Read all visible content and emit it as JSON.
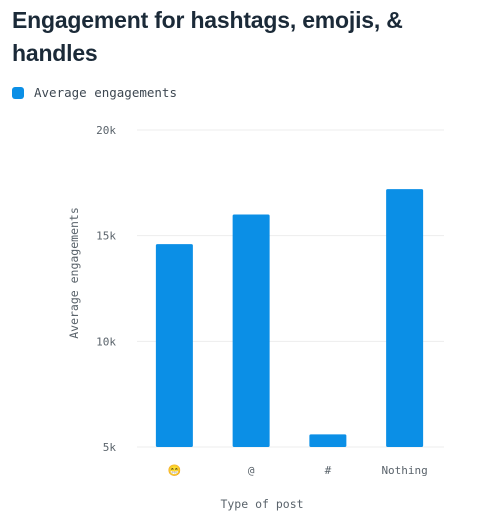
{
  "title": "Engagement for hashtags, emojis, & handles",
  "colors": {
    "bar": "#0b8fe6",
    "grid": "#ededed",
    "text": "#5a636b",
    "title": "#1b2a38"
  },
  "chart_data": {
    "type": "bar",
    "title": "Engagement for hashtags, emojis, & handles",
    "xlabel": "Type of post",
    "ylabel": "Average engagements",
    "categories": [
      "😁",
      "@",
      "#",
      "Nothing"
    ],
    "series": [
      {
        "name": "Average engagements",
        "values": [
          14600,
          16000,
          5600,
          17200
        ]
      }
    ],
    "ylim": [
      5000,
      20000
    ],
    "yticks": [
      5000,
      10000,
      15000,
      20000
    ],
    "ytick_labels": [
      "5k",
      "10k",
      "15k",
      "20k"
    ],
    "grid": true,
    "legend_position": "top-left"
  }
}
